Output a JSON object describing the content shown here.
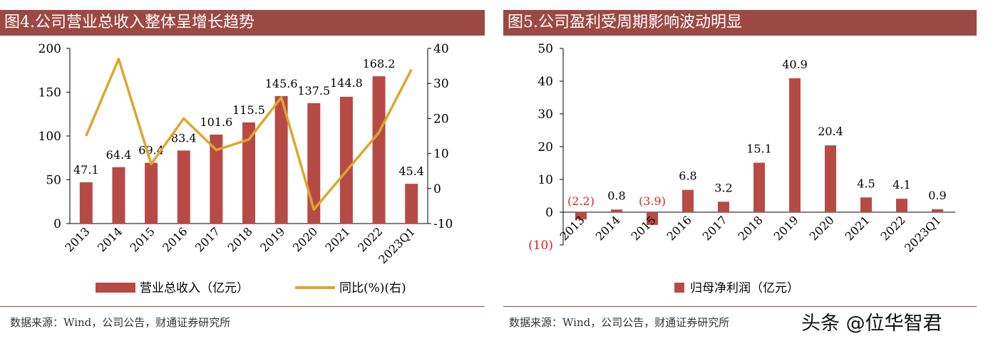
{
  "left": {
    "title": "图4.公司营业总收入整体呈增长趋势",
    "source": "数据来源：Wind，公司公告，财通证券研究所",
    "chart_data": {
      "type": "bar",
      "categories": [
        "2013",
        "2014",
        "2015",
        "2016",
        "2017",
        "2018",
        "2019",
        "2020",
        "2021",
        "2022",
        "2023Q1"
      ],
      "series": [
        {
          "name": "营业总收入（亿元）",
          "type": "bar",
          "axis": "left",
          "color": "#b84a46",
          "values": [
            47.1,
            64.4,
            69.4,
            83.4,
            101.6,
            115.5,
            145.6,
            137.5,
            144.8,
            168.2,
            45.4
          ],
          "labels": [
            "47.1",
            "64.4",
            "69.4",
            "83.4",
            "101.6",
            "115.5",
            "145.6",
            "137.5",
            "144.8",
            "168.2",
            "45.4"
          ],
          "label_series": [
            0,
            1,
            2,
            3,
            4,
            5,
            6,
            7,
            9,
            10
          ]
        },
        {
          "name": "同比(%)(右)",
          "type": "line",
          "axis": "right",
          "color": "#dca72d",
          "values": [
            15,
            37,
            7,
            20,
            11,
            14,
            26,
            -6,
            5,
            16,
            34
          ]
        }
      ],
      "yleft": {
        "min": 0,
        "max": 200,
        "ticks": [
          "0",
          "50",
          "100",
          "150",
          "200"
        ]
      },
      "yright": {
        "min": -10,
        "max": 40,
        "ticks": [
          "-10",
          "0",
          "10",
          "20",
          "30",
          "40"
        ]
      },
      "legend_position": "bottom"
    }
  },
  "right": {
    "title": "图5.公司盈利受周期影响波动明显",
    "source": "数据来源：Wind，公司公告，财通证券研究所",
    "chart_data": {
      "type": "bar",
      "categories": [
        "2013",
        "2014",
        "2015",
        "2016",
        "2017",
        "2018",
        "2019",
        "2020",
        "2021",
        "2022",
        "2023Q1"
      ],
      "series": [
        {
          "name": "归母净利润（亿元）",
          "color": "#b84a46",
          "values": [
            -2.2,
            0.8,
            -3.9,
            6.8,
            3.2,
            15.1,
            40.9,
            20.4,
            4.5,
            4.1,
            0.9
          ],
          "labels": [
            "(2.2)",
            "0.8",
            "(3.9)",
            "6.8",
            "3.2",
            "15.1",
            "40.9",
            "20.4",
            "4.5",
            "4.1",
            "0.9"
          ]
        }
      ],
      "y": {
        "min": -10,
        "max": 50,
        "ticks": [
          "(10)",
          "0",
          "10",
          "20",
          "30",
          "40",
          "50"
        ]
      },
      "negative_label_color": "#e02020",
      "legend_position": "bottom"
    }
  },
  "watermark": "头条 @位华智君"
}
